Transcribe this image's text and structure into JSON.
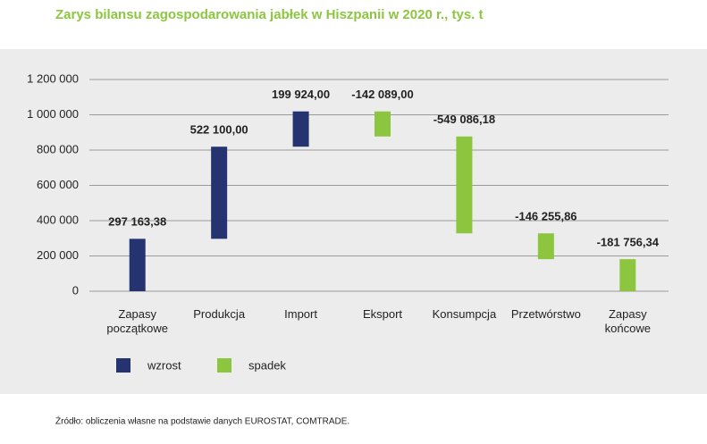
{
  "chart_data": {
    "type": "waterfall",
    "title": "Zarys bilansu zagospodarowania jabłek w Hiszpanii w 2020 r., tys. t",
    "categories": [
      "Zapasy początkowe",
      "Produkcja",
      "Import",
      "Eksport",
      "Konsumpcja",
      "Przetwórstwo",
      "Zapasy końcowe"
    ],
    "values": [
      297163.38,
      522100,
      199924,
      -142089,
      -549086.18,
      -146255.86,
      -181756.34
    ],
    "value_labels": [
      "297 163,38",
      "522 100,00",
      "199 924,00",
      "-142 089,00",
      "-549 086,18",
      "-146 255,86",
      "-181 756,34"
    ],
    "legend": [
      {
        "name": "wzrost",
        "color": "#253470"
      },
      {
        "name": "spadek",
        "color": "#8cc63f"
      }
    ],
    "ylim": [
      0,
      1200000
    ],
    "yticks": [
      0,
      {
        "value": 200000,
        "label": "200 000"
      },
      {
        "value": 400000,
        "label": "400 000"
      },
      {
        "value": 600000,
        "label": "600 000"
      },
      {
        "value": 800000,
        "label": "800 000"
      },
      {
        "value": 1000000,
        "label": "1 000 000"
      },
      {
        "value": 1200000,
        "label": "1 200 000"
      }
    ],
    "grid": true,
    "source": "Źródło: obliczenia własne na podstawie danych EUROSTAT, COMTRADE."
  }
}
